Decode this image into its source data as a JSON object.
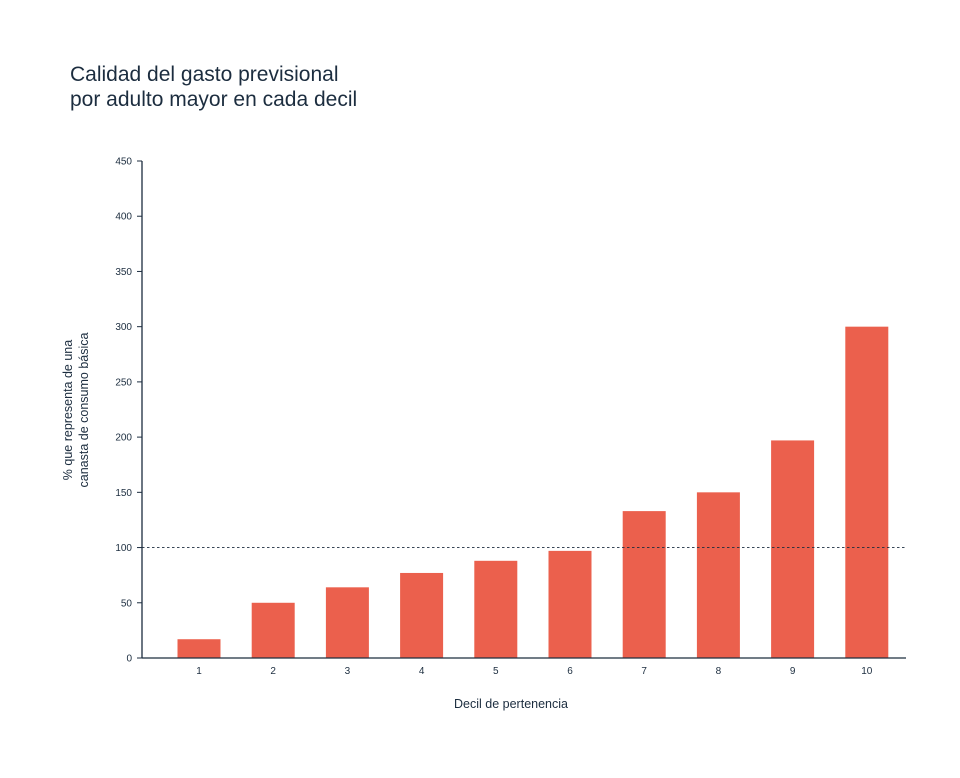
{
  "chart_data": {
    "type": "bar",
    "title_lines": [
      "Calidad del gasto previsional",
      "por adulto mayor en cada decil"
    ],
    "xlabel": "Decil de pertenencia",
    "ylabel_lines": [
      "% que representa de una",
      "canasta de consumo básica"
    ],
    "categories": [
      "1",
      "2",
      "3",
      "4",
      "5",
      "6",
      "7",
      "8",
      "9",
      "10"
    ],
    "values": [
      17,
      50,
      64,
      77,
      88,
      97,
      133,
      150,
      197,
      300
    ],
    "ylim": [
      0,
      450
    ],
    "yticks": [
      "0",
      "50",
      "100",
      "150",
      "200",
      "250",
      "300",
      "350",
      "400",
      "450"
    ],
    "reference_line": 100,
    "bar_color": "#eb604d",
    "axis_color": "#1c2d3f",
    "grid": false
  }
}
